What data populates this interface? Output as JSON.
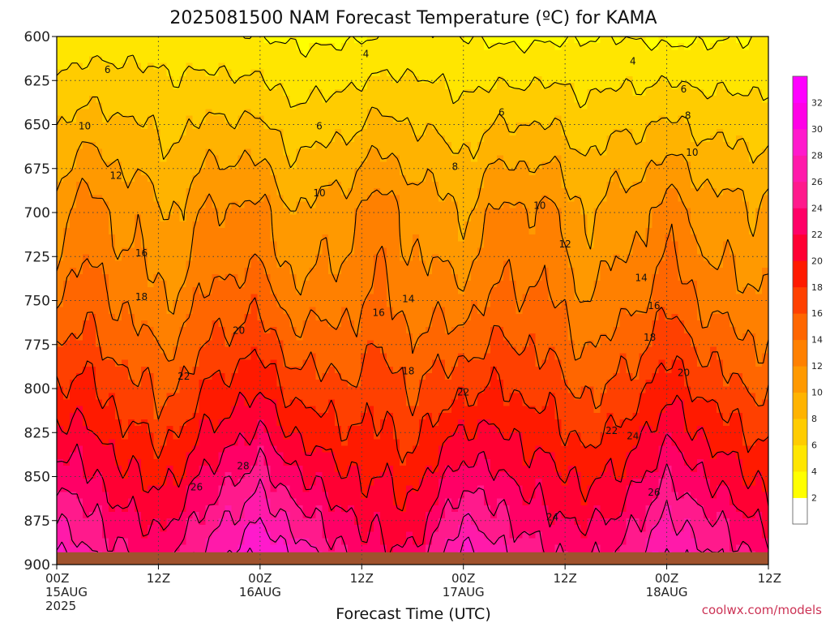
{
  "chart_data": {
    "type": "heatmap",
    "title": "2025081500 NAM Forecast Temperature (ºC) for KAMA",
    "xlabel": "Forecast Time (UTC)",
    "ylabel": "",
    "credit": "coolwx.com/models",
    "x_ticks": [
      {
        "hour": 0,
        "label": "00Z",
        "sub": "15AUG",
        "sub2": "2025"
      },
      {
        "hour": 12,
        "label": "12Z",
        "sub": "",
        "sub2": ""
      },
      {
        "hour": 24,
        "label": "00Z",
        "sub": "16AUG",
        "sub2": ""
      },
      {
        "hour": 36,
        "label": "12Z",
        "sub": "",
        "sub2": ""
      },
      {
        "hour": 48,
        "label": "00Z",
        "sub": "17AUG",
        "sub2": ""
      },
      {
        "hour": 60,
        "label": "12Z",
        "sub": "",
        "sub2": ""
      },
      {
        "hour": 72,
        "label": "00Z",
        "sub": "18AUG",
        "sub2": ""
      },
      {
        "hour": 84,
        "label": "12Z",
        "sub": "",
        "sub2": ""
      }
    ],
    "y_ticks": [
      600,
      625,
      650,
      675,
      700,
      725,
      750,
      775,
      800,
      825,
      850,
      875,
      900
    ],
    "xlim": [
      0,
      84
    ],
    "ylim": [
      900,
      600
    ],
    "y_unit": "hPa",
    "grid": true,
    "colorbar": {
      "labels": [
        2,
        4,
        6,
        8,
        10,
        12,
        14,
        16,
        18,
        20,
        22,
        24,
        26,
        28,
        30,
        32
      ],
      "levels": [
        0,
        2,
        4,
        6,
        8,
        10,
        12,
        14,
        16,
        18,
        20,
        22,
        24,
        26,
        28,
        30,
        32,
        34
      ],
      "colors": [
        "#ffffff",
        "#ffff00",
        "#ffe600",
        "#ffcc00",
        "#ffb300",
        "#ff9900",
        "#ff8000",
        "#ff6600",
        "#ff4000",
        "#ff1a00",
        "#ff0033",
        "#ff0066",
        "#ff1a8c",
        "#ff1aaa",
        "#ff1acc",
        "#ff00e6",
        "#ff00ff"
      ]
    },
    "hours": [
      0,
      6,
      12,
      18,
      24,
      30,
      36,
      42,
      48,
      54,
      60,
      66,
      72,
      78,
      84
    ],
    "profiles": {
      "values": [
        {
          "hour": 0,
          "t600": 4.5,
          "t900": 29.0
        },
        {
          "hour": 6,
          "t600": 5.0,
          "t900": 25.5
        },
        {
          "hour": 12,
          "t600": 5.0,
          "t900": 23.5
        },
        {
          "hour": 18,
          "t600": 4.5,
          "t900": 27.5
        },
        {
          "hour": 24,
          "t600": 4.0,
          "t900": 31.0
        },
        {
          "hour": 30,
          "t600": 3.5,
          "t900": 27.0
        },
        {
          "hour": 36,
          "t600": 3.8,
          "t900": 23.5
        },
        {
          "hour": 42,
          "t600": 4.5,
          "t900": 22.5
        },
        {
          "hour": 48,
          "t600": 4.0,
          "t900": 29.5
        },
        {
          "hour": 54,
          "t600": 3.5,
          "t900": 26.0
        },
        {
          "hour": 60,
          "t600": 3.8,
          "t900": 24.0
        },
        {
          "hour": 66,
          "t600": 4.0,
          "t900": 24.5
        },
        {
          "hour": 72,
          "t600": 3.5,
          "t900": 29.0
        },
        {
          "hour": 78,
          "t600": 3.8,
          "t900": 26.5
        },
        {
          "hour": 84,
          "t600": 4.0,
          "t900": 23.5
        }
      ]
    },
    "contour_labels": [
      {
        "text": "4",
        "hour": 36.5,
        "p": 610
      },
      {
        "text": "4",
        "hour": 68.0,
        "p": 614
      },
      {
        "text": "6",
        "hour": 6.0,
        "p": 619
      },
      {
        "text": "6",
        "hour": 74.0,
        "p": 630
      },
      {
        "text": "6",
        "hour": 52.5,
        "p": 643
      },
      {
        "text": "6",
        "hour": 31.0,
        "p": 651
      },
      {
        "text": "8",
        "hour": 74.5,
        "p": 645
      },
      {
        "text": "8",
        "hour": 47.0,
        "p": 674
      },
      {
        "text": "10",
        "hour": 3.3,
        "p": 651
      },
      {
        "text": "10",
        "hour": 31.0,
        "p": 689
      },
      {
        "text": "10",
        "hour": 57.0,
        "p": 696
      },
      {
        "text": "10",
        "hour": 75.0,
        "p": 666
      },
      {
        "text": "12",
        "hour": 7.0,
        "p": 679
      },
      {
        "text": "12",
        "hour": 60.0,
        "p": 718
      },
      {
        "text": "14",
        "hour": 41.5,
        "p": 749
      },
      {
        "text": "14",
        "hour": 69.0,
        "p": 737
      },
      {
        "text": "16",
        "hour": 10.0,
        "p": 723
      },
      {
        "text": "16",
        "hour": 38.0,
        "p": 757
      },
      {
        "text": "16",
        "hour": 70.5,
        "p": 753
      },
      {
        "text": "18",
        "hour": 10.0,
        "p": 748
      },
      {
        "text": "18",
        "hour": 41.5,
        "p": 790
      },
      {
        "text": "18",
        "hour": 70.0,
        "p": 771
      },
      {
        "text": "20",
        "hour": 21.5,
        "p": 767
      },
      {
        "text": "20",
        "hour": 74.0,
        "p": 791
      },
      {
        "text": "22",
        "hour": 15.0,
        "p": 793
      },
      {
        "text": "22",
        "hour": 48.0,
        "p": 802
      },
      {
        "text": "22",
        "hour": 65.5,
        "p": 824
      },
      {
        "text": "24",
        "hour": 68.0,
        "p": 827
      },
      {
        "text": "24",
        "hour": 58.5,
        "p": 873
      },
      {
        "text": "26",
        "hour": 16.5,
        "p": 856
      },
      {
        "text": "26",
        "hour": 70.5,
        "p": 859
      },
      {
        "text": "28",
        "hour": 22.0,
        "p": 844
      }
    ]
  }
}
